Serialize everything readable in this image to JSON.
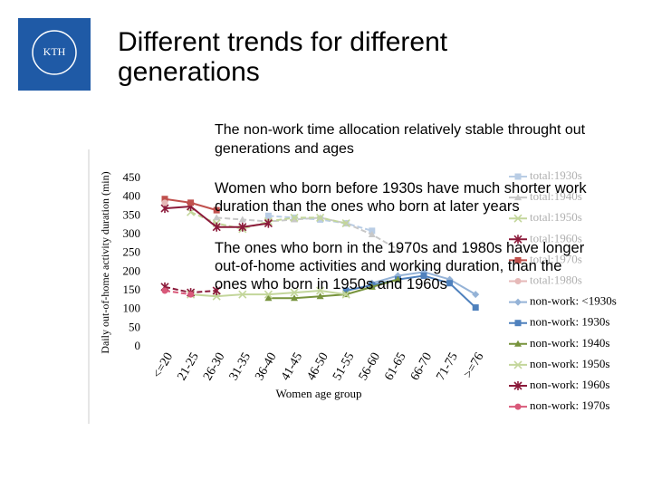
{
  "logo": {
    "text": "KTH"
  },
  "chart_data": {
    "type": "line",
    "title": "Different trends for different generations",
    "subtitle": "The non-work time allocation relatively stable throught out generations and ages",
    "annotations": [
      "Women who born before 1930s have much shorter work duration than the ones who born at later years",
      "The ones who born in the 1970s and 1980s have longer out-of-home activities and working duration, than the ones who born in 1950s and 1960s"
    ],
    "y_label": "Daily out-of-home activity duration (min)",
    "x_label": "Women age group",
    "categories": [
      "<=20",
      "21-25",
      "26-30",
      "31-35",
      "36-40",
      "41-45",
      "46-50",
      "51-55",
      "56-60",
      "61-65",
      "66-70",
      "71-75",
      ">=76"
    ],
    "ylim": [
      0,
      450
    ],
    "yticks": [
      0,
      50,
      100,
      150,
      200,
      250,
      300,
      350,
      400,
      450
    ],
    "series": [
      {
        "name": "total:1930s",
        "color": "#b9cde5",
        "marker": "square",
        "dashed": true,
        "values": [
          null,
          null,
          null,
          null,
          350,
          345,
          340,
          330,
          310,
          null,
          null,
          null,
          null
        ]
      },
      {
        "name": "total:1940s",
        "color": "#c8c8c8",
        "marker": "triangle",
        "dashed": true,
        "values": [
          null,
          null,
          345,
          340,
          335,
          340,
          345,
          330,
          300,
          260,
          null,
          null,
          null
        ]
      },
      {
        "name": "total:1950s",
        "color": "#c3d69b",
        "marker": "x",
        "dashed": true,
        "values": [
          null,
          360,
          330,
          315,
          335,
          345,
          345,
          330,
          null,
          null,
          null,
          null,
          null
        ]
      },
      {
        "name": "total:1960s",
        "color": "#8b1a3a",
        "marker": "star",
        "dashed": false,
        "values": [
          370,
          375,
          320,
          320,
          330,
          null,
          null,
          null,
          null,
          null,
          null,
          null,
          null
        ]
      },
      {
        "name": "total:1970s",
        "color": "#c0504d",
        "marker": "square",
        "dashed": false,
        "values": [
          395,
          385,
          365,
          null,
          null,
          null,
          null,
          null,
          null,
          null,
          null,
          null,
          null
        ]
      },
      {
        "name": "total:1980s",
        "color": "#e6b9b8",
        "marker": "circle",
        "dashed": true,
        "values": [
          385,
          null,
          null,
          null,
          null,
          null,
          null,
          null,
          null,
          null,
          null,
          null,
          null
        ]
      },
      {
        "name": "non-work: <1930s",
        "color": "#95b3d7",
        "marker": "diamond",
        "dashed": false,
        "values": [
          null,
          null,
          null,
          null,
          null,
          null,
          null,
          null,
          170,
          190,
          200,
          180,
          140
        ]
      },
      {
        "name": "non-work: 1930s",
        "color": "#4f81bd",
        "marker": "square",
        "dashed": false,
        "values": [
          null,
          null,
          null,
          null,
          null,
          null,
          null,
          150,
          165,
          180,
          190,
          170,
          105
        ]
      },
      {
        "name": "non-work: 1940s",
        "color": "#77933c",
        "marker": "triangle",
        "dashed": false,
        "values": [
          null,
          null,
          null,
          null,
          130,
          130,
          135,
          140,
          160,
          180,
          null,
          null,
          null
        ]
      },
      {
        "name": "non-work: 1950s",
        "color": "#c3d69b",
        "marker": "x",
        "dashed": false,
        "values": [
          null,
          140,
          135,
          140,
          140,
          145,
          150,
          140,
          null,
          null,
          null,
          null,
          null
        ]
      },
      {
        "name": "non-work: 1960s",
        "color": "#8b1a3a",
        "marker": "star",
        "dashed": true,
        "values": [
          160,
          145,
          150,
          null,
          null,
          null,
          null,
          null,
          null,
          null,
          null,
          null,
          null
        ]
      },
      {
        "name": "non-work: 1970s",
        "color": "#d9597a",
        "marker": "circle",
        "dashed": true,
        "values": [
          150,
          140,
          null,
          null,
          null,
          null,
          null,
          null,
          null,
          null,
          null,
          null,
          null
        ]
      }
    ]
  }
}
